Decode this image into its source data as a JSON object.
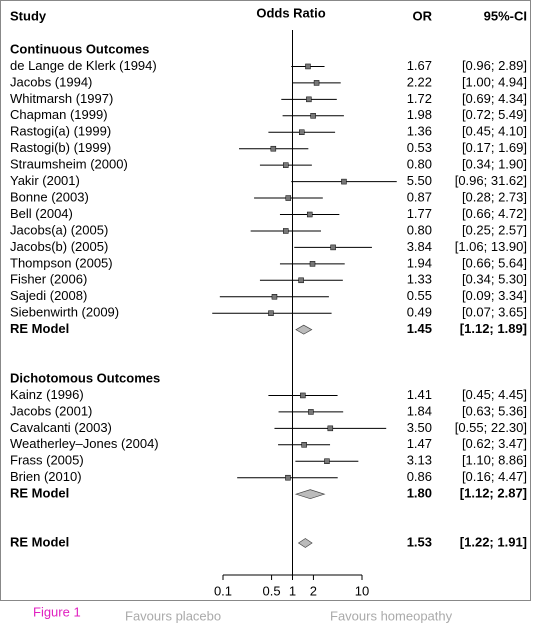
{
  "chart_data": {
    "type": "forest",
    "columns": {
      "study": "Study",
      "effect": "Odds Ratio",
      "or": "OR",
      "ci": "95%-CI"
    },
    "log_scale": true,
    "xlim": [
      0.1,
      10
    ],
    "xticks": [
      0.1,
      0.5,
      1,
      2,
      10
    ],
    "null_line": 1,
    "groups": [
      {
        "title": "Continuous Outcomes",
        "studies": [
          "de Lange de Klerk (1994)",
          "Jacobs (1994)",
          "Whitmarsh (1997)",
          "Chapman (1999)",
          "Rastogi(a) (1999)",
          "Rastogi(b) (1999)",
          "Straumsheim (2000)",
          "Yakir (2001)",
          "Bonne (2003)",
          "Bell (2004)",
          "Jacobs(a) (2005)",
          "Jacobs(b) (2005)",
          "Thompson (2005)",
          "Fisher (2006)",
          "Sajedi (2008)",
          "Siebenwirth (2009)"
        ],
        "values": [
          1.67,
          2.22,
          1.72,
          1.98,
          1.36,
          0.53,
          0.8,
          5.5,
          0.87,
          1.77,
          0.8,
          3.84,
          1.94,
          1.33,
          0.55,
          0.49
        ],
        "value_labels": [
          "1.67",
          "2.22",
          "1.72",
          "1.98",
          "1.36",
          "0.53",
          "0.80",
          "5.50",
          "0.87",
          "1.77",
          "0.80",
          "3.84",
          "1.94",
          "1.33",
          "0.55",
          "0.49"
        ],
        "lower": [
          0.96,
          1.0,
          0.69,
          0.72,
          0.45,
          0.17,
          0.34,
          0.96,
          0.28,
          0.66,
          0.25,
          1.06,
          0.66,
          0.34,
          0.09,
          0.07
        ],
        "upper": [
          2.89,
          4.94,
          4.34,
          5.49,
          4.1,
          1.69,
          1.9,
          31.62,
          2.73,
          4.72,
          2.57,
          13.9,
          5.64,
          5.3,
          3.34,
          3.65
        ],
        "ci_labels": [
          "[0.96; 2.89]",
          "[1.00; 4.94]",
          "[0.69; 4.34]",
          "[0.72; 5.49]",
          "[0.45; 4.10]",
          "[0.17; 1.69]",
          "[0.34; 1.90]",
          "[0.96; 31.62]",
          "[0.28; 2.73]",
          "[0.66; 4.72]",
          "[0.25; 2.57]",
          "[1.06; 13.90]",
          "[0.66; 5.64]",
          "[0.34; 5.30]",
          "[0.09; 3.34]",
          "[0.07; 3.65]"
        ],
        "summary": {
          "name": "RE Model",
          "value": 1.45,
          "value_label": "1.45",
          "lower": 1.12,
          "upper": 1.89,
          "ci_label": "[1.12; 1.89]"
        }
      },
      {
        "title": "Dichotomous Outcomes",
        "studies": [
          "Kainz (1996)",
          "Jacobs (2001)",
          "Cavalcanti (2003)",
          "Weatherley–Jones (2004)",
          "Frass (2005)",
          "Brien (2010)"
        ],
        "values": [
          1.41,
          1.84,
          3.5,
          1.47,
          3.13,
          0.86
        ],
        "value_labels": [
          "1.41",
          "1.84",
          "3.50",
          "1.47",
          "3.13",
          "0.86"
        ],
        "lower": [
          0.45,
          0.63,
          0.55,
          0.62,
          1.1,
          0.16
        ],
        "upper": [
          4.45,
          5.36,
          22.3,
          3.47,
          8.86,
          4.47
        ],
        "ci_labels": [
          "[0.45; 4.45]",
          "[0.63; 5.36]",
          "[0.55; 22.30]",
          "[0.62; 3.47]",
          "[1.10; 8.86]",
          "[0.16; 4.47]"
        ],
        "summary": {
          "name": "RE Model",
          "value": 1.8,
          "value_label": "1.80",
          "lower": 1.12,
          "upper": 2.87,
          "ci_label": "[1.12; 2.87]"
        }
      }
    ],
    "overall": {
      "name": "RE Model",
      "value": 1.53,
      "value_label": "1.53",
      "lower": 1.22,
      "upper": 1.91,
      "ci_label": "[1.22; 1.91]"
    },
    "footer": {
      "figure": "Figure 1",
      "left": "Favours placebo",
      "right": "Favours homeopathy"
    }
  }
}
